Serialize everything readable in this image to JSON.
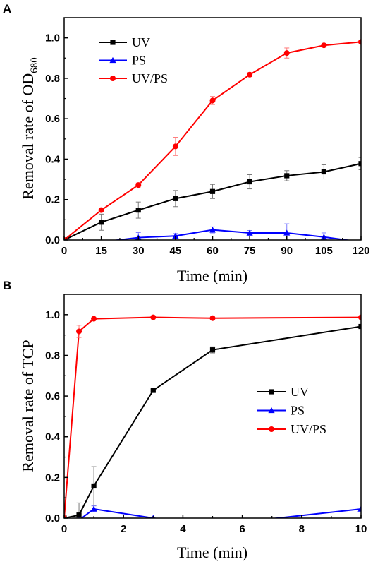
{
  "chart_data": [
    {
      "type": "line",
      "panel_label": "A",
      "xlabel": "Time (min)",
      "ylabel_main": "Removal rate of OD",
      "ylabel_sub": "680",
      "xlim": [
        0,
        120
      ],
      "ylim": [
        0,
        1.1
      ],
      "x_ticks": [
        0,
        15,
        30,
        45,
        60,
        75,
        90,
        105,
        120
      ],
      "x_tick_labels": [
        "0",
        "15",
        "30",
        "45",
        "60",
        "75",
        "90",
        "105",
        "120"
      ],
      "y_ticks": [
        0,
        0.2,
        0.4,
        0.6,
        0.8,
        1.0
      ],
      "y_tick_labels": [
        "0.0",
        "0.2",
        "0.4",
        "0.6",
        "0.8",
        "1.0"
      ],
      "legend_position": "top-left",
      "series": [
        {
          "name": "UV",
          "color": "#000000",
          "marker": "square",
          "x": [
            0,
            15,
            30,
            45,
            60,
            75,
            90,
            105,
            120
          ],
          "y": [
            0,
            0.088,
            0.148,
            0.205,
            0.24,
            0.288,
            0.318,
            0.337,
            0.378
          ],
          "err": [
            0,
            0.04,
            0.04,
            0.04,
            0.035,
            0.035,
            0.025,
            0.035,
            0.03
          ]
        },
        {
          "name": "PS",
          "color": "#0000ff",
          "marker": "triangle",
          "x": [
            0,
            15,
            30,
            45,
            60,
            75,
            90,
            105,
            120
          ],
          "y": [
            0,
            -0.01,
            0.012,
            0.02,
            0.05,
            0.035,
            0.035,
            0.015,
            -0.01
          ],
          "err": [
            0,
            0,
            0.025,
            0.012,
            0.015,
            0.012,
            0.045,
            0.02,
            0
          ]
        },
        {
          "name": "UV/PS",
          "color": "#ff0000",
          "marker": "circle",
          "x": [
            0,
            15,
            30,
            45,
            60,
            75,
            90,
            105,
            120
          ],
          "y": [
            0,
            0.148,
            0.272,
            0.463,
            0.69,
            0.818,
            0.925,
            0.963,
            0.98
          ],
          "err": [
            0,
            0.01,
            0.01,
            0.045,
            0.02,
            0.01,
            0.025,
            0.005,
            0.005
          ]
        }
      ]
    },
    {
      "type": "line",
      "panel_label": "B",
      "xlabel": "Time (min)",
      "ylabel_main": "Removal rate of TCP",
      "ylabel_sub": "",
      "xlim": [
        0,
        10
      ],
      "ylim": [
        0,
        1.1
      ],
      "x_ticks": [
        0,
        2,
        4,
        6,
        8,
        10
      ],
      "x_tick_labels": [
        "0",
        "2",
        "4",
        "6",
        "8",
        "10"
      ],
      "y_ticks": [
        0,
        0.2,
        0.4,
        0.6,
        0.8,
        1.0
      ],
      "y_tick_labels": [
        "0.0",
        "0.2",
        "0.4",
        "0.6",
        "0.8",
        "1.0"
      ],
      "legend_position": "center-right",
      "series": [
        {
          "name": "UV",
          "color": "#000000",
          "marker": "square",
          "x": [
            0,
            0.5,
            1,
            3,
            5,
            10
          ],
          "y": [
            0,
            0.015,
            0.158,
            0.628,
            0.827,
            0.942
          ],
          "err": [
            0,
            0.06,
            0.095,
            0.005,
            0.015,
            0.005
          ]
        },
        {
          "name": "PS",
          "color": "#0000ff",
          "marker": "triangle",
          "x": [
            0,
            0.5,
            1,
            3,
            5,
            10
          ],
          "y": [
            0,
            -0.01,
            0.045,
            0,
            -0.035,
            0.045
          ],
          "err": [
            0,
            0,
            0.015,
            0,
            0,
            0.005
          ]
        },
        {
          "name": "UV/PS",
          "color": "#ff0000",
          "marker": "circle",
          "x": [
            0,
            0.5,
            1,
            3,
            5,
            10
          ],
          "y": [
            0,
            0.918,
            0.98,
            0.987,
            0.983,
            0.987
          ],
          "err": [
            0,
            0.03,
            0.005,
            0.005,
            0.005,
            0.005
          ]
        }
      ]
    }
  ]
}
